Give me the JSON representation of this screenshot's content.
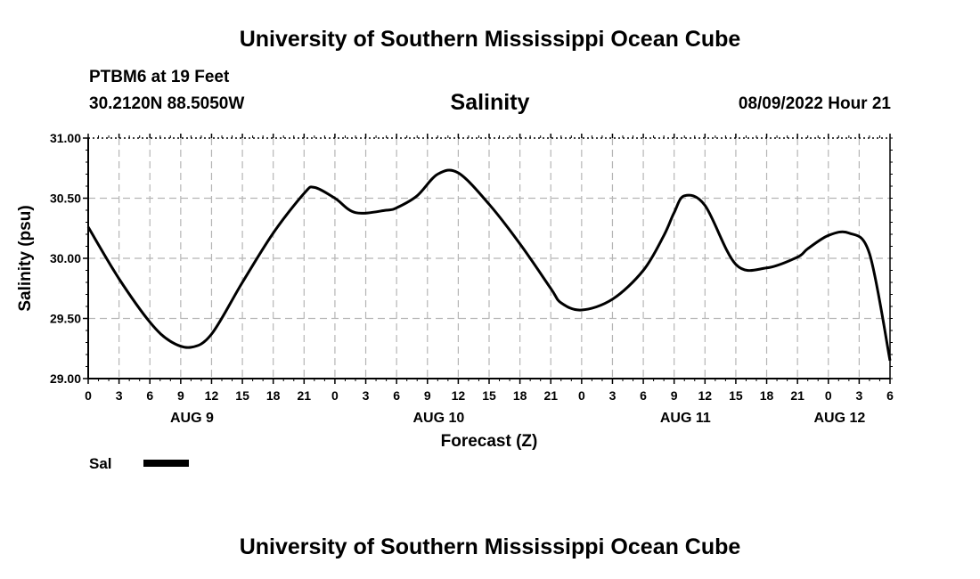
{
  "header": {
    "title": "University of Southern Mississippi Ocean Cube",
    "station": "PTBM6 at 19 Feet",
    "coords": "30.2120N  88.5050W",
    "variable": "Salinity",
    "datetime": "08/09/2022 Hour 21"
  },
  "footer": {
    "title": "University of Southern Mississippi Ocean Cube"
  },
  "chart_data": {
    "type": "line",
    "xlabel": "Forecast (Z)",
    "ylabel": "Salinity (psu)",
    "ylim": [
      29.0,
      31.0
    ],
    "xlim_hours": [
      0,
      78
    ],
    "yticks": [
      "29.00",
      "29.50",
      "30.00",
      "30.50",
      "31.00"
    ],
    "xtick_labels": [
      "0",
      "3",
      "6",
      "9",
      "12",
      "15",
      "18",
      "21",
      "0",
      "3",
      "6",
      "9",
      "12",
      "15",
      "18",
      "21",
      "0",
      "3",
      "6",
      "9",
      "12",
      "15",
      "18",
      "21",
      "0",
      "3",
      "6"
    ],
    "day_labels": [
      "AUG 9",
      "AUG 10",
      "AUG 11",
      "AUG 12"
    ],
    "grid": true,
    "legend_position": "bottom-left",
    "series": [
      {
        "name": "Sal",
        "color": "#000000",
        "x_hours": [
          0,
          3,
          6,
          8,
          10,
          12,
          15,
          18,
          21,
          22,
          24,
          26,
          29,
          30,
          32,
          34,
          36,
          39,
          42,
          45,
          46,
          48,
          51,
          54,
          56,
          57,
          58,
          60,
          63,
          66,
          69,
          70,
          72,
          74,
          76,
          78
        ],
        "values": [
          30.26,
          29.83,
          29.47,
          29.31,
          29.26,
          29.37,
          29.8,
          30.21,
          30.54,
          30.59,
          30.5,
          30.38,
          30.4,
          30.42,
          30.52,
          30.7,
          30.71,
          30.45,
          30.12,
          29.75,
          29.63,
          29.57,
          29.66,
          29.9,
          30.19,
          30.38,
          30.52,
          30.44,
          29.95,
          29.92,
          30.01,
          30.08,
          30.19,
          30.21,
          30.04,
          29.15
        ]
      }
    ]
  }
}
